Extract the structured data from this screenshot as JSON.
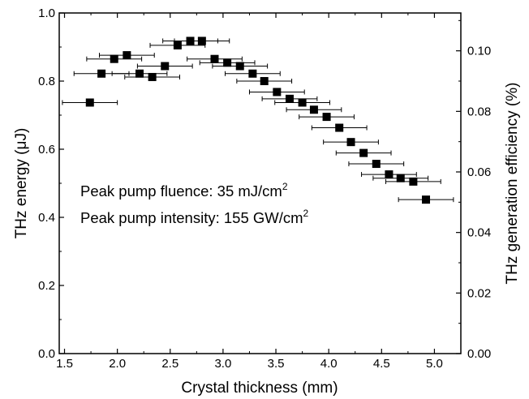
{
  "chart_data": {
    "type": "scatter",
    "xlabel": "Crystal thickness (mm)",
    "ylabel": "THz energy (μJ)",
    "y2label": "THz generation efficiency (%)",
    "xlim": [
      1.45,
      5.25
    ],
    "ylim": [
      0.0,
      1.0
    ],
    "y2lim": [
      0.0,
      0.1125
    ],
    "x_ticks": [
      "1.5",
      "2.0",
      "2.5",
      "3.0",
      "3.5",
      "4.0",
      "4.5",
      "5.0"
    ],
    "y_ticks": [
      "0.0",
      "0.2",
      "0.4",
      "0.6",
      "0.8",
      "1.0"
    ],
    "y2_ticks": [
      "0.00",
      "0.02",
      "0.04",
      "0.06",
      "0.08",
      "0.10"
    ],
    "grid": false,
    "marker": "filled-square",
    "points": [
      {
        "x": 1.74,
        "y": 0.737,
        "xerr": 0.26
      },
      {
        "x": 1.85,
        "y": 0.822,
        "xerr": 0.26
      },
      {
        "x": 1.97,
        "y": 0.865,
        "xerr": 0.26
      },
      {
        "x": 2.09,
        "y": 0.876,
        "xerr": 0.26
      },
      {
        "x": 2.21,
        "y": 0.822,
        "xerr": 0.26
      },
      {
        "x": 2.33,
        "y": 0.812,
        "xerr": 0.26
      },
      {
        "x": 2.45,
        "y": 0.844,
        "xerr": 0.26
      },
      {
        "x": 2.57,
        "y": 0.905,
        "xerr": 0.26
      },
      {
        "x": 2.69,
        "y": 0.918,
        "xerr": 0.26
      },
      {
        "x": 2.8,
        "y": 0.918,
        "xerr": 0.26
      },
      {
        "x": 2.92,
        "y": 0.865,
        "xerr": 0.26
      },
      {
        "x": 3.04,
        "y": 0.854,
        "xerr": 0.26
      },
      {
        "x": 3.16,
        "y": 0.844,
        "xerr": 0.26
      },
      {
        "x": 3.28,
        "y": 0.822,
        "xerr": 0.26
      },
      {
        "x": 3.39,
        "y": 0.8,
        "xerr": 0.26
      },
      {
        "x": 3.51,
        "y": 0.768,
        "xerr": 0.26
      },
      {
        "x": 3.63,
        "y": 0.748,
        "xerr": 0.26
      },
      {
        "x": 3.75,
        "y": 0.737,
        "xerr": 0.26
      },
      {
        "x": 3.86,
        "y": 0.716,
        "xerr": 0.26
      },
      {
        "x": 3.98,
        "y": 0.695,
        "xerr": 0.26
      },
      {
        "x": 4.1,
        "y": 0.663,
        "xerr": 0.26
      },
      {
        "x": 4.21,
        "y": 0.621,
        "xerr": 0.26
      },
      {
        "x": 4.33,
        "y": 0.589,
        "xerr": 0.26
      },
      {
        "x": 4.45,
        "y": 0.557,
        "xerr": 0.26
      },
      {
        "x": 4.57,
        "y": 0.526,
        "xerr": 0.26
      },
      {
        "x": 4.68,
        "y": 0.515,
        "xerr": 0.26
      },
      {
        "x": 4.8,
        "y": 0.505,
        "xerr": 0.26
      },
      {
        "x": 4.92,
        "y": 0.452,
        "xerr": 0.26
      }
    ],
    "annotations": [
      {
        "text": "Peak pump fluence: 35 mJ/cm",
        "sup": "2"
      },
      {
        "text": "Peak pump intensity: 155 GW/cm",
        "sup": "2"
      }
    ],
    "colors": {
      "marker": "#000000",
      "axes": "#000000",
      "background": "#ffffff"
    }
  }
}
